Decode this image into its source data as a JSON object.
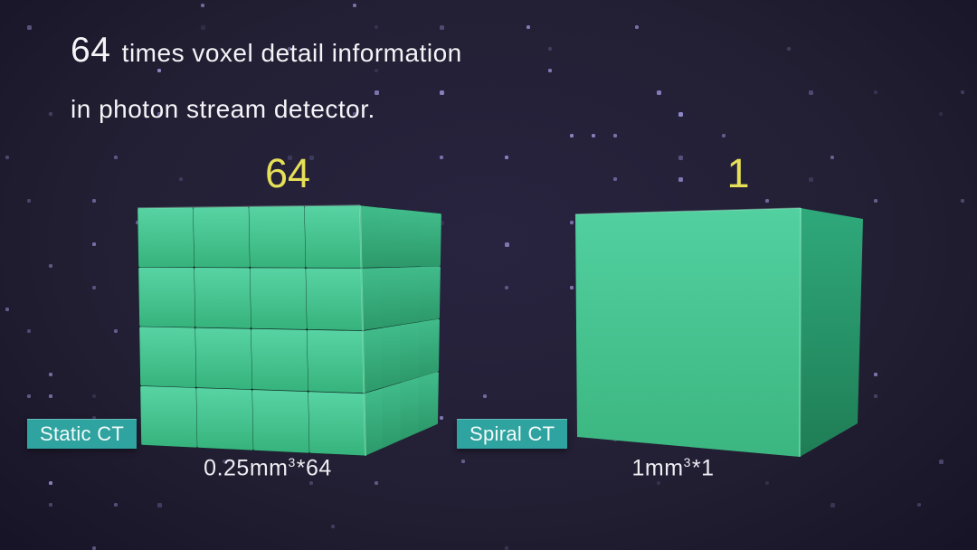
{
  "slide": {
    "header": {
      "highlight": "64",
      "line1_rest": "times voxel detail information",
      "line2": "in photon stream detector."
    },
    "comparison": {
      "left": {
        "count_label": "64",
        "badge": "Static CT",
        "caption": {
          "base": "0.25mm",
          "sup": "3",
          "mult": "*64"
        },
        "grid": {
          "rows": 4,
          "cols": 4
        }
      },
      "right": {
        "count_label": "1",
        "badge": "Spiral CT",
        "caption": {
          "base": "1mm",
          "sup": "3",
          "mult": "*1"
        },
        "grid": {
          "rows": 1,
          "cols": 1
        }
      }
    },
    "colors": {
      "background": "#221e32",
      "dot": "#9b94d8",
      "cube_front_green": "#46c592",
      "cube_side_green": "#2f9e73",
      "grid_gap": "#0e2a24",
      "badge_teal": "#2fa3a0",
      "number_yellow": "#e6df58",
      "text_white": "#f4f4f7"
    }
  }
}
